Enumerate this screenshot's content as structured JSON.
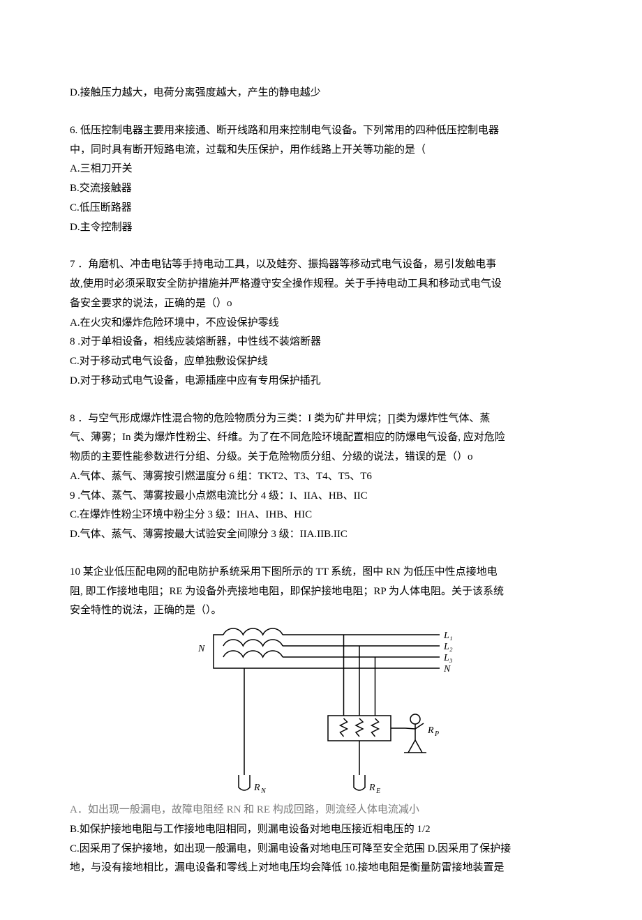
{
  "q5_d": "D.接触压力越大，电荷分离强度越大，产生的静电越少",
  "q6": {
    "stem1": "6. 低压控制电器主要用来接通、断开线路和用来控制电气设备。下列常用的四种低压控制电器",
    "stem2": "中，同时具有断开短路电流，过载和失压保护，用作线路上开关等功能的是（",
    "a": "A.三相刀开关",
    "b": "B.交流接触器",
    "c": "C.低压断路器",
    "d": "D.主令控制器"
  },
  "q7": {
    "stem1": "7 ．角磨机、冲击电钻等手持电动工具，以及蛙夯、振捣器等移动式电气设备，易引发触电事",
    "stem2": "故,使用时必须采取安全防护措施并严格遵守安全操作规程。关于手持电动工具和移动式电气设",
    "stem3": "备安全要求的说法，正确的是（）o",
    "a": "A.在火灾和爆炸危险环境中，不应设保护零线",
    "b": "8 .对于单相设备，相线应装熔断器，中性线不装熔断器",
    "c": "C.对于移动式电气设备，应单独敷设保护线",
    "d": "D.对于移动式电气设备，电源插座中应有专用保护插孔"
  },
  "q8": {
    "stem1": "8 ．与空气形成爆炸性混合物的危险物质分为三类：I 类为矿井甲烷；∏类为爆炸性气体、蒸",
    "stem2": "气、薄雾；In 类为爆炸性粉尘、纤维。为了在不同危险环境配置相应的防爆电气设备, 应对危险",
    "stem3": "物质的主要性能参数进行分组、分级。关于危险物质分组、分级的说法，错误的是（）o",
    "a": "A.气体、蒸气、薄雾按引燃温度分 6 组：TKT2、T3、T4、T5、T6",
    "b": "9 .气体、蒸气、薄雾按最小点燃电流比分 4 级：I、IIA、HB、IIC",
    "c": "C.在爆炸性粉尘环境中粉尘分 3 级：IHA、IHB、HIC",
    "d": "D.气体、蒸气、薄雾按最大试验安全间隙分 3 级：IIA.IIB.IIC"
  },
  "q10": {
    "stem1": "10 某企业低压配电网的配电防护系统采用下图所示的 TT 系统，图中 RN 为低压中性点接地电",
    "stem2": "阻, 即工作接地电阻；RE 为设备外壳接地电阻，即保护接地电阻；RP 为人体电阻。关于该系统",
    "stem3": "安全特性的说法，正确的是（）。",
    "a": "A．如出现一般漏电，故障电阻经 RN 和 RE 构成回路，则流经人体电流减小",
    "b": "B.如保护接地电阻与工作接地电阻相同，则漏电设备对地电压接近相电压的 1/2",
    "c": "C.因采用了保护接地，如出现一般漏电，则漏电设备对地电压可降至安全范围 D.因采用了保护接",
    "d": "地，与没有接地相比，漏电设备和零线上对地电压均会降低 10.接地电阻是衡量防雷接地装置是"
  },
  "diagram": {
    "stroke": "#000000",
    "stroke_width": 1.5,
    "N_left": "N",
    "L1": "L₁",
    "L2": "L₂",
    "L3": "L₃",
    "Nr": "N",
    "RN": "R_N",
    "RE": "R_E",
    "RP": "R_P",
    "font_family": "Times New Roman, serif",
    "label_fontsize": 14,
    "label_fontstyle": "italic",
    "sub_fontsize": 10
  }
}
